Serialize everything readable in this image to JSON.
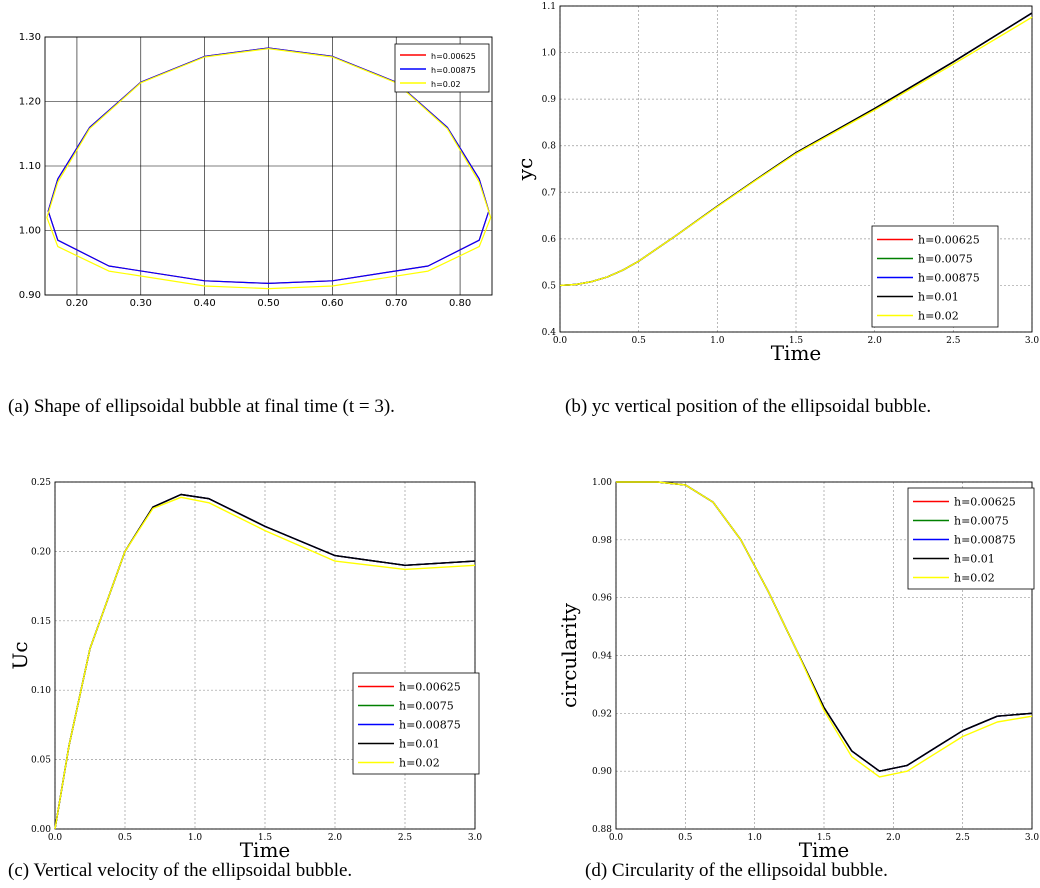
{
  "captions": {
    "a": "(a)  Shape of ellipsoidal bubble at final time (t = 3).",
    "b": "(b)  yc vertical position of the ellipsoidal bubble.",
    "c": "(c)  Vertical velocity of the ellipsoidal bubble.",
    "d": "(d)  Circularity of the ellipsoidal bubble."
  },
  "colors": {
    "h=0.00625": "#ff0000",
    "h=0.0075": "#008000",
    "h=0.00875": "#0000ff",
    "h=0.01": "#000000",
    "h=0.02": "#ffff00"
  },
  "chart_data": [
    {
      "id": "a",
      "type": "line",
      "xlabel": "",
      "ylabel": "",
      "xlim": [
        0.15,
        0.85
      ],
      "ylim": [
        0.9,
        1.3
      ],
      "xticks": [
        "0.20",
        "0.30",
        "0.40",
        "0.50",
        "0.60",
        "0.70",
        "0.80"
      ],
      "yticks": [
        "0.90",
        "1.00",
        "1.10",
        "1.20",
        "1.30"
      ],
      "grid": true,
      "legend": "top-right",
      "series": [
        {
          "name": "h=0.00625",
          "x": [
            0.5,
            0.6,
            0.7,
            0.78,
            0.83,
            0.845,
            0.83,
            0.75,
            0.6,
            0.5,
            0.4,
            0.25,
            0.17,
            0.155,
            0.17,
            0.22,
            0.3,
            0.4,
            0.5
          ],
          "y": [
            1.283,
            1.27,
            1.23,
            1.16,
            1.08,
            1.03,
            0.985,
            0.945,
            0.922,
            0.918,
            0.922,
            0.945,
            0.985,
            1.03,
            1.08,
            1.16,
            1.23,
            1.27,
            1.283
          ]
        },
        {
          "name": "h=0.00875",
          "x": [
            0.5,
            0.6,
            0.7,
            0.78,
            0.83,
            0.845,
            0.83,
            0.75,
            0.6,
            0.5,
            0.4,
            0.25,
            0.17,
            0.155,
            0.17,
            0.22,
            0.3,
            0.4,
            0.5
          ],
          "y": [
            1.283,
            1.27,
            1.23,
            1.16,
            1.08,
            1.03,
            0.985,
            0.945,
            0.922,
            0.918,
            0.922,
            0.945,
            0.985,
            1.03,
            1.08,
            1.16,
            1.23,
            1.27,
            1.283
          ]
        },
        {
          "name": "h=0.02",
          "x": [
            0.5,
            0.6,
            0.7,
            0.78,
            0.83,
            0.848,
            0.83,
            0.75,
            0.6,
            0.5,
            0.4,
            0.25,
            0.17,
            0.153,
            0.17,
            0.22,
            0.3,
            0.4,
            0.5
          ],
          "y": [
            1.282,
            1.269,
            1.229,
            1.158,
            1.075,
            1.02,
            0.975,
            0.937,
            0.914,
            0.91,
            0.914,
            0.937,
            0.975,
            1.02,
            1.075,
            1.158,
            1.229,
            1.269,
            1.282
          ]
        }
      ]
    },
    {
      "id": "b",
      "type": "line",
      "xlabel": "Time",
      "ylabel": "yc",
      "xlim": [
        0.0,
        3.0
      ],
      "ylim": [
        0.4,
        1.1
      ],
      "xticks": [
        "0.0",
        "0.5",
        "1.0",
        "1.5",
        "2.0",
        "2.5",
        "3.0"
      ],
      "yticks": [
        "0.4",
        "0.5",
        "0.6",
        "0.7",
        "0.8",
        "0.9",
        "1.0",
        "1.1"
      ],
      "grid": true,
      "legend": "bottom-right",
      "series": [
        {
          "name": "h=0.00625",
          "x": [
            0,
            0.1,
            0.2,
            0.3,
            0.4,
            0.5,
            0.75,
            1.0,
            1.25,
            1.5,
            2.0,
            2.5,
            3.0
          ],
          "y": [
            0.5,
            0.502,
            0.508,
            0.518,
            0.533,
            0.552,
            0.61,
            0.67,
            0.728,
            0.785,
            0.88,
            0.98,
            1.085
          ]
        },
        {
          "name": "h=0.0075",
          "x": [
            0,
            0.1,
            0.2,
            0.3,
            0.4,
            0.5,
            0.75,
            1.0,
            1.25,
            1.5,
            2.0,
            2.5,
            3.0
          ],
          "y": [
            0.5,
            0.502,
            0.508,
            0.518,
            0.533,
            0.552,
            0.61,
            0.67,
            0.728,
            0.785,
            0.88,
            0.98,
            1.085
          ]
        },
        {
          "name": "h=0.00875",
          "x": [
            0,
            0.1,
            0.2,
            0.3,
            0.4,
            0.5,
            0.75,
            1.0,
            1.25,
            1.5,
            2.0,
            2.5,
            3.0
          ],
          "y": [
            0.5,
            0.502,
            0.508,
            0.518,
            0.533,
            0.552,
            0.61,
            0.67,
            0.728,
            0.785,
            0.88,
            0.98,
            1.085
          ]
        },
        {
          "name": "h=0.01",
          "x": [
            0,
            0.1,
            0.2,
            0.3,
            0.4,
            0.5,
            0.75,
            1.0,
            1.25,
            1.5,
            2.0,
            2.5,
            3.0
          ],
          "y": [
            0.5,
            0.502,
            0.508,
            0.518,
            0.533,
            0.552,
            0.61,
            0.67,
            0.728,
            0.785,
            0.88,
            0.98,
            1.085
          ]
        },
        {
          "name": "h=0.02",
          "x": [
            0,
            0.1,
            0.2,
            0.3,
            0.4,
            0.5,
            0.75,
            1.0,
            1.25,
            1.5,
            2.0,
            2.5,
            3.0
          ],
          "y": [
            0.5,
            0.502,
            0.508,
            0.518,
            0.533,
            0.552,
            0.61,
            0.669,
            0.727,
            0.783,
            0.877,
            0.975,
            1.076
          ]
        }
      ]
    },
    {
      "id": "c",
      "type": "line",
      "xlabel": "Time",
      "ylabel": "Uc",
      "xlim": [
        0.0,
        3.0
      ],
      "ylim": [
        0.0,
        0.25
      ],
      "xticks": [
        "0.0",
        "0.5",
        "1.0",
        "1.5",
        "2.0",
        "2.5",
        "3.0"
      ],
      "yticks": [
        "0.00",
        "0.05",
        "0.10",
        "0.15",
        "0.20",
        "0.25"
      ],
      "grid": true,
      "legend": "bottom-right",
      "series": [
        {
          "name": "h=0.00625",
          "x": [
            0,
            0.1,
            0.25,
            0.5,
            0.7,
            0.9,
            1.1,
            1.5,
            2.0,
            2.5,
            3.0
          ],
          "y": [
            0.0,
            0.06,
            0.13,
            0.2,
            0.232,
            0.241,
            0.238,
            0.218,
            0.197,
            0.19,
            0.193
          ]
        },
        {
          "name": "h=0.0075",
          "x": [
            0,
            0.1,
            0.25,
            0.5,
            0.7,
            0.9,
            1.1,
            1.5,
            2.0,
            2.5,
            3.0
          ],
          "y": [
            0.0,
            0.06,
            0.13,
            0.2,
            0.232,
            0.241,
            0.238,
            0.218,
            0.197,
            0.19,
            0.193
          ]
        },
        {
          "name": "h=0.00875",
          "x": [
            0,
            0.1,
            0.25,
            0.5,
            0.7,
            0.9,
            1.1,
            1.5,
            2.0,
            2.5,
            3.0
          ],
          "y": [
            0.0,
            0.06,
            0.13,
            0.2,
            0.232,
            0.241,
            0.238,
            0.218,
            0.197,
            0.19,
            0.193
          ]
        },
        {
          "name": "h=0.01",
          "x": [
            0,
            0.1,
            0.25,
            0.5,
            0.7,
            0.9,
            1.1,
            1.5,
            2.0,
            2.5,
            3.0
          ],
          "y": [
            0.0,
            0.06,
            0.13,
            0.2,
            0.232,
            0.241,
            0.238,
            0.218,
            0.197,
            0.19,
            0.193
          ]
        },
        {
          "name": "h=0.02",
          "x": [
            0,
            0.1,
            0.25,
            0.5,
            0.7,
            0.9,
            1.1,
            1.5,
            2.0,
            2.5,
            3.0
          ],
          "y": [
            0.0,
            0.06,
            0.13,
            0.2,
            0.231,
            0.239,
            0.235,
            0.215,
            0.193,
            0.187,
            0.19
          ]
        }
      ]
    },
    {
      "id": "d",
      "type": "line",
      "xlabel": "Time",
      "ylabel": "circularity",
      "xlim": [
        0.0,
        3.0
      ],
      "ylim": [
        0.88,
        1.0
      ],
      "xticks": [
        "0.0",
        "0.5",
        "1.0",
        "1.5",
        "2.0",
        "2.5",
        "3.0"
      ],
      "yticks": [
        "0.88",
        "0.90",
        "0.92",
        "0.94",
        "0.96",
        "0.98",
        "1.00"
      ],
      "grid": true,
      "legend": "top-right",
      "series": [
        {
          "name": "h=0.00625",
          "x": [
            0,
            0.3,
            0.5,
            0.7,
            0.9,
            1.1,
            1.3,
            1.5,
            1.7,
            1.9,
            2.1,
            2.3,
            2.5,
            2.75,
            3.0
          ],
          "y": [
            1.0,
            1.0,
            0.999,
            0.993,
            0.98,
            0.962,
            0.942,
            0.922,
            0.907,
            0.9,
            0.902,
            0.908,
            0.914,
            0.919,
            0.92
          ]
        },
        {
          "name": "h=0.0075",
          "x": [
            0,
            0.3,
            0.5,
            0.7,
            0.9,
            1.1,
            1.3,
            1.5,
            1.7,
            1.9,
            2.1,
            2.3,
            2.5,
            2.75,
            3.0
          ],
          "y": [
            1.0,
            1.0,
            0.999,
            0.993,
            0.98,
            0.962,
            0.942,
            0.922,
            0.907,
            0.9,
            0.902,
            0.908,
            0.914,
            0.919,
            0.92
          ]
        },
        {
          "name": "h=0.00875",
          "x": [
            0,
            0.3,
            0.5,
            0.7,
            0.9,
            1.1,
            1.3,
            1.5,
            1.7,
            1.9,
            2.1,
            2.3,
            2.5,
            2.75,
            3.0
          ],
          "y": [
            1.0,
            1.0,
            0.999,
            0.993,
            0.98,
            0.962,
            0.942,
            0.922,
            0.907,
            0.9,
            0.902,
            0.908,
            0.914,
            0.919,
            0.92
          ]
        },
        {
          "name": "h=0.01",
          "x": [
            0,
            0.3,
            0.5,
            0.7,
            0.9,
            1.1,
            1.3,
            1.5,
            1.7,
            1.9,
            2.1,
            2.3,
            2.5,
            2.75,
            3.0
          ],
          "y": [
            1.0,
            1.0,
            0.999,
            0.993,
            0.98,
            0.962,
            0.942,
            0.922,
            0.907,
            0.9,
            0.902,
            0.908,
            0.914,
            0.919,
            0.92
          ]
        },
        {
          "name": "h=0.02",
          "x": [
            0,
            0.3,
            0.5,
            0.7,
            0.9,
            1.1,
            1.3,
            1.5,
            1.7,
            1.9,
            2.1,
            2.3,
            2.5,
            2.75,
            3.0
          ],
          "y": [
            1.0,
            1.0,
            0.999,
            0.993,
            0.98,
            0.962,
            0.942,
            0.921,
            0.905,
            0.898,
            0.9,
            0.906,
            0.912,
            0.917,
            0.919
          ]
        }
      ]
    }
  ]
}
